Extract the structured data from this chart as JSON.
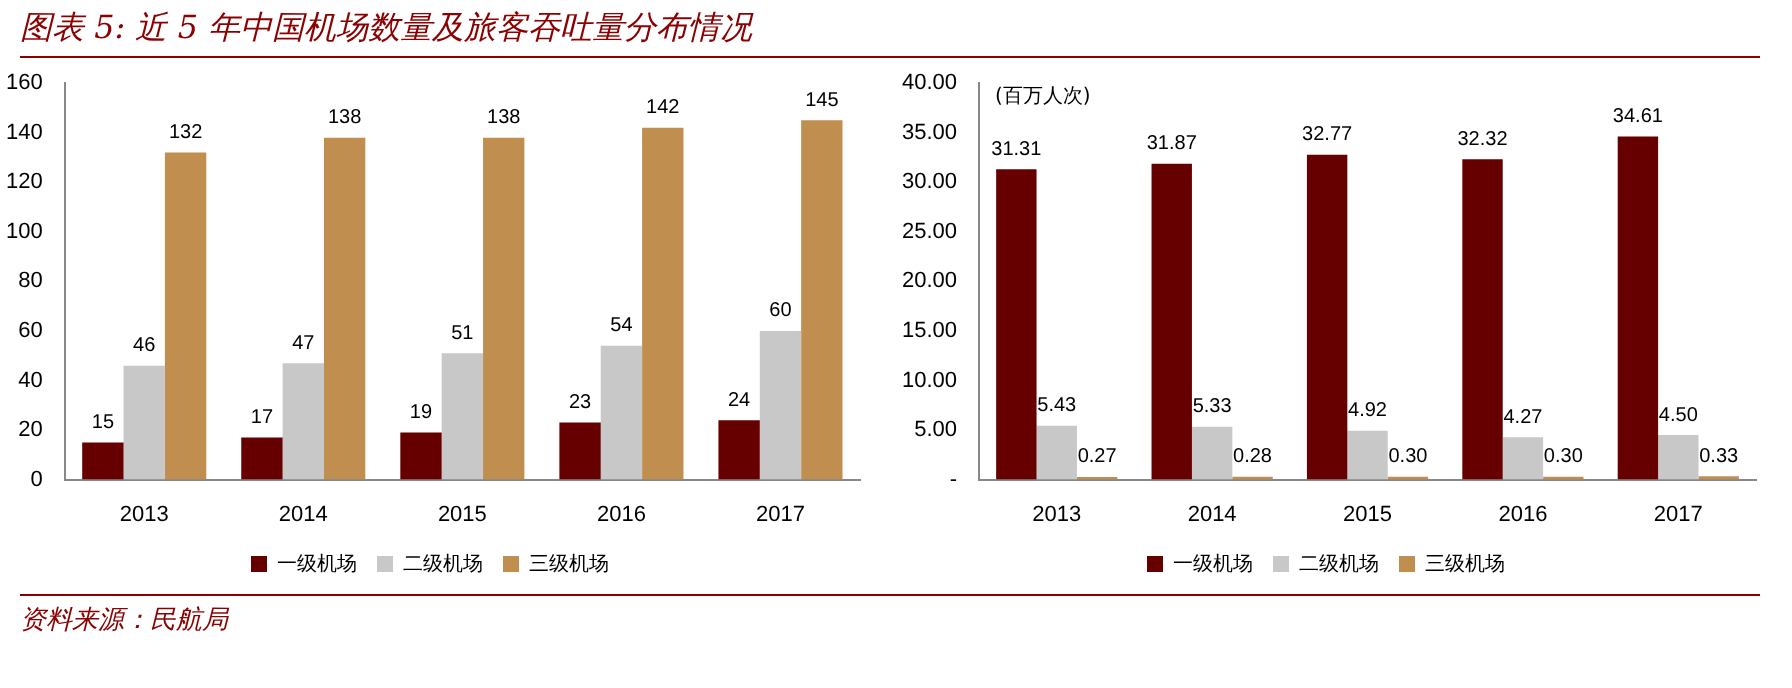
{
  "chart_data": [
    {
      "type": "bar",
      "title": "图表 5: 近 5 年中国机场数量及旅客吞吐量分布情况",
      "annotations": [
        "资料来源：民航局"
      ],
      "categories": [
        "2013",
        "2014",
        "2015",
        "2016",
        "2017"
      ],
      "series": [
        {
          "name": "一级机场",
          "color": "#660000",
          "values": [
            15,
            17,
            19,
            23,
            24
          ]
        },
        {
          "name": "二级机场",
          "color": "#c8c8c8",
          "values": [
            46,
            47,
            51,
            54,
            60
          ]
        },
        {
          "name": "三级机场",
          "color": "#c08f4f",
          "values": [
            132,
            138,
            138,
            142,
            145
          ]
        }
      ],
      "ylim": [
        0,
        160
      ],
      "yticks": [
        0,
        20,
        40,
        60,
        80,
        100,
        120,
        140,
        160
      ],
      "grid": false,
      "legend": "bottom",
      "data_labels": true
    },
    {
      "type": "bar",
      "ylabel": "(百万人次)",
      "categories": [
        "2013",
        "2014",
        "2015",
        "2016",
        "2017"
      ],
      "series": [
        {
          "name": "一级机场",
          "color": "#660000",
          "values": [
            31.31,
            31.87,
            32.77,
            32.32,
            34.61
          ],
          "value_labels": [
            "31.31",
            "31.87",
            "32.77",
            "32.32",
            "34.61"
          ]
        },
        {
          "name": "二级机场",
          "color": "#c8c8c8",
          "values": [
            5.43,
            5.33,
            4.92,
            4.27,
            4.5
          ],
          "value_labels": [
            "5.43",
            "5.33",
            "4.92",
            "4.27",
            "4.50"
          ]
        },
        {
          "name": "三级机场",
          "color": "#c08f4f",
          "values": [
            0.27,
            0.28,
            0.3,
            0.3,
            0.33
          ],
          "value_labels": [
            "0.27",
            "0.28",
            "0.30",
            "0.30",
            "0.33"
          ]
        }
      ],
      "ylim": [
        0,
        40
      ],
      "yticks": [
        {
          "value": 0,
          "label": "-"
        },
        {
          "value": 5,
          "label": "5.00"
        },
        {
          "value": 10,
          "label": "10.00"
        },
        {
          "value": 15,
          "label": "15.00"
        },
        {
          "value": 20,
          "label": "20.00"
        },
        {
          "value": 25,
          "label": "25.00"
        },
        {
          "value": 30,
          "label": "30.00"
        },
        {
          "value": 35,
          "label": "35.00"
        },
        {
          "value": 40,
          "label": "40.00"
        }
      ],
      "grid": false,
      "legend": "bottom"
    }
  ]
}
